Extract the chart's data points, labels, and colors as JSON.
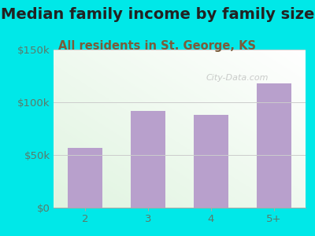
{
  "title": "Median family income by family size",
  "subtitle": "All residents in St. George, KS",
  "categories": [
    "2",
    "3",
    "4",
    "5+"
  ],
  "values": [
    57000,
    92000,
    88000,
    118000
  ],
  "bar_color": "#b8a0cc",
  "title_color": "#222222",
  "subtitle_color": "#7a5c3a",
  "tick_color": "#5a7a6a",
  "background_outer": "#00e8e8",
  "ylim": [
    0,
    150000
  ],
  "yticks": [
    0,
    50000,
    100000,
    150000
  ],
  "ytick_labels": [
    "$0",
    "$50k",
    "$100k",
    "$150k"
  ],
  "watermark": "City-Data.com",
  "title_fontsize": 14,
  "subtitle_fontsize": 10.5,
  "tick_fontsize": 9.5
}
